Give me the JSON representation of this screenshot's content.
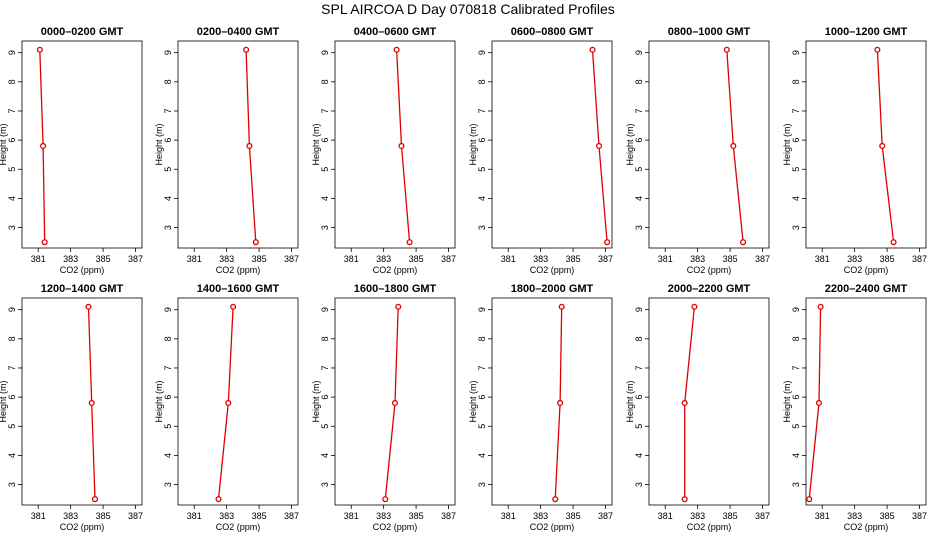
{
  "title": "SPL AIRCOA D  Day 070818  Calibrated Profiles",
  "chart_data": [
    {
      "type": "line",
      "title": "0000–0200 GMT",
      "xlabel": "CO2 (ppm)",
      "ylabel": "Height (m)",
      "xlim": [
        380,
        387.4
      ],
      "ylim": [
        2.3,
        9.4
      ],
      "x_ticks": [
        381,
        383,
        385,
        387
      ],
      "y_ticks": [
        3,
        4,
        5,
        6,
        7,
        8,
        9
      ],
      "series": [
        {
          "x": [
            381.1,
            381.3,
            381.4
          ],
          "y": [
            9.1,
            5.8,
            2.5
          ]
        }
      ]
    },
    {
      "type": "line",
      "title": "0200–0400 GMT",
      "xlabel": "CO2 (ppm)",
      "ylabel": "Height (m)",
      "xlim": [
        380,
        387.4
      ],
      "ylim": [
        2.3,
        9.4
      ],
      "x_ticks": [
        381,
        383,
        385,
        387
      ],
      "y_ticks": [
        3,
        4,
        5,
        6,
        7,
        8,
        9
      ],
      "series": [
        {
          "x": [
            384.2,
            384.4,
            384.8
          ],
          "y": [
            9.1,
            5.8,
            2.5
          ]
        }
      ]
    },
    {
      "type": "line",
      "title": "0400–0600 GMT",
      "xlabel": "CO2 (ppm)",
      "ylabel": "Height (m)",
      "xlim": [
        380,
        387.4
      ],
      "ylim": [
        2.3,
        9.4
      ],
      "x_ticks": [
        381,
        383,
        385,
        387
      ],
      "y_ticks": [
        3,
        4,
        5,
        6,
        7,
        8,
        9
      ],
      "series": [
        {
          "x": [
            383.8,
            384.1,
            384.6
          ],
          "y": [
            9.1,
            5.8,
            2.5
          ]
        }
      ]
    },
    {
      "type": "line",
      "title": "0600–0800 GMT",
      "xlabel": "CO2 (ppm)",
      "ylabel": "Height (m)",
      "xlim": [
        380,
        387.4
      ],
      "ylim": [
        2.3,
        9.4
      ],
      "x_ticks": [
        381,
        383,
        385,
        387
      ],
      "y_ticks": [
        3,
        4,
        5,
        6,
        7,
        8,
        9
      ],
      "series": [
        {
          "x": [
            386.2,
            386.6,
            387.1
          ],
          "y": [
            9.1,
            5.8,
            2.5
          ]
        }
      ]
    },
    {
      "type": "line",
      "title": "0800–1000 GMT",
      "xlabel": "CO2 (ppm)",
      "ylabel": "Height (m)",
      "xlim": [
        380,
        387.4
      ],
      "ylim": [
        2.3,
        9.4
      ],
      "x_ticks": [
        381,
        383,
        385,
        387
      ],
      "y_ticks": [
        3,
        4,
        5,
        6,
        7,
        8,
        9
      ],
      "series": [
        {
          "x": [
            384.8,
            385.2,
            385.8
          ],
          "y": [
            9.1,
            5.8,
            2.5
          ]
        }
      ]
    },
    {
      "type": "line",
      "title": "1000–1200 GMT",
      "xlabel": "CO2 (ppm)",
      "ylabel": "Height (m)",
      "xlim": [
        380,
        387.4
      ],
      "ylim": [
        2.3,
        9.4
      ],
      "x_ticks": [
        381,
        383,
        385,
        387
      ],
      "y_ticks": [
        3,
        4,
        5,
        6,
        7,
        8,
        9
      ],
      "series": [
        {
          "x": [
            384.4,
            384.7,
            385.4
          ],
          "y": [
            9.1,
            5.8,
            2.5
          ]
        }
      ]
    },
    {
      "type": "line",
      "title": "1200–1400 GMT",
      "xlabel": "CO2 (ppm)",
      "ylabel": "Height (m)",
      "xlim": [
        380,
        387.4
      ],
      "ylim": [
        2.3,
        9.4
      ],
      "x_ticks": [
        381,
        383,
        385,
        387
      ],
      "y_ticks": [
        3,
        4,
        5,
        6,
        7,
        8,
        9
      ],
      "series": [
        {
          "x": [
            384.1,
            384.3,
            384.5
          ],
          "y": [
            9.1,
            5.8,
            2.5
          ]
        }
      ]
    },
    {
      "type": "line",
      "title": "1400–1600 GMT",
      "xlabel": "CO2 (ppm)",
      "ylabel": "Height (m)",
      "xlim": [
        380,
        387.4
      ],
      "ylim": [
        2.3,
        9.4
      ],
      "x_ticks": [
        381,
        383,
        385,
        387
      ],
      "y_ticks": [
        3,
        4,
        5,
        6,
        7,
        8,
        9
      ],
      "series": [
        {
          "x": [
            383.4,
            383.1,
            382.5
          ],
          "y": [
            9.1,
            5.8,
            2.5
          ]
        }
      ]
    },
    {
      "type": "line",
      "title": "1600–1800 GMT",
      "xlabel": "CO2 (ppm)",
      "ylabel": "Height (m)",
      "xlim": [
        380,
        387.4
      ],
      "ylim": [
        2.3,
        9.4
      ],
      "x_ticks": [
        381,
        383,
        385,
        387
      ],
      "y_ticks": [
        3,
        4,
        5,
        6,
        7,
        8,
        9
      ],
      "series": [
        {
          "x": [
            383.9,
            383.7,
            383.1
          ],
          "y": [
            9.1,
            5.8,
            2.5
          ]
        }
      ]
    },
    {
      "type": "line",
      "title": "1800–2000 GMT",
      "xlabel": "CO2 (ppm)",
      "ylabel": "Height (m)",
      "xlim": [
        380,
        387.4
      ],
      "ylim": [
        2.3,
        9.4
      ],
      "x_ticks": [
        381,
        383,
        385,
        387
      ],
      "y_ticks": [
        3,
        4,
        5,
        6,
        7,
        8,
        9
      ],
      "series": [
        {
          "x": [
            384.3,
            384.2,
            383.9
          ],
          "y": [
            9.1,
            5.8,
            2.5
          ]
        }
      ]
    },
    {
      "type": "line",
      "title": "2000–2200 GMT",
      "xlabel": "CO2 (ppm)",
      "ylabel": "Height (m)",
      "xlim": [
        380,
        387.4
      ],
      "ylim": [
        2.3,
        9.4
      ],
      "x_ticks": [
        381,
        383,
        385,
        387
      ],
      "y_ticks": [
        3,
        4,
        5,
        6,
        7,
        8,
        9
      ],
      "series": [
        {
          "x": [
            382.8,
            382.2,
            382.2
          ],
          "y": [
            9.1,
            5.8,
            2.5
          ]
        }
      ]
    },
    {
      "type": "line",
      "title": "2200–2400 GMT",
      "xlabel": "CO2 (ppm)",
      "ylabel": "Height (m)",
      "xlim": [
        380,
        387.4
      ],
      "ylim": [
        2.3,
        9.4
      ],
      "x_ticks": [
        381,
        383,
        385,
        387
      ],
      "y_ticks": [
        3,
        4,
        5,
        6,
        7,
        8,
        9
      ],
      "series": [
        {
          "x": [
            380.9,
            380.8,
            380.2
          ],
          "y": [
            9.1,
            5.8,
            2.5
          ]
        }
      ]
    }
  ]
}
